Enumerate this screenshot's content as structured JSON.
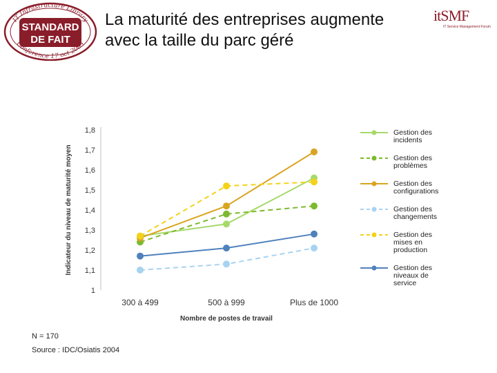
{
  "badge": {
    "top_text": "IT Infrastructure Library",
    "line1": "STANDARD",
    "line2": "DE FAIT",
    "bottom_text": "Conference 17 oct 2005"
  },
  "slide": {
    "title_line1": "La maturité des entreprises augmente",
    "title_line2": "avec la taille du parc géré"
  },
  "logo": {
    "text": "itSMF",
    "tagline": "IT Service Management Forum"
  },
  "footer": {
    "n": "N = 170",
    "source": "Source : IDC/Osiatis 2004"
  },
  "chart_data": {
    "type": "line",
    "ylabel": "Indicateur du niveau de maturité moyen",
    "xlabel": "Nombre de postes de travail",
    "categories": [
      "300 à 499",
      "500 à 999",
      "Plus de 1000"
    ],
    "ylim": [
      1,
      1.8
    ],
    "yticks": [
      "1",
      "1,1",
      "1,2",
      "1,3",
      "1,4",
      "1,5",
      "1,6",
      "1,7",
      "1,8"
    ],
    "grid": false,
    "legend_position": "right",
    "series": [
      {
        "name": "Gestion des incidents",
        "values": [
          1.27,
          1.33,
          1.56
        ],
        "color": "#a6d96a",
        "style": "solid"
      },
      {
        "name": "Gestion des problèmes",
        "values": [
          1.24,
          1.38,
          1.42
        ],
        "color": "#7db92e",
        "style": "dashed"
      },
      {
        "name": "Gestion des configurations",
        "values": [
          1.26,
          1.42,
          1.69
        ],
        "color": "#d9a420",
        "style": "solid"
      },
      {
        "name": "Gestion des changements",
        "values": [
          1.1,
          1.13,
          1.21
        ],
        "color": "#a7d3f2",
        "style": "dashed"
      },
      {
        "name": "Gestion des mises en production",
        "values": [
          1.27,
          1.52,
          1.54
        ],
        "color": "#f3d21a",
        "style": "dashed"
      },
      {
        "name": "Gestion des niveaux de service",
        "values": [
          1.17,
          1.21,
          1.28
        ],
        "color": "#4f81bd",
        "style": "solid"
      }
    ]
  }
}
